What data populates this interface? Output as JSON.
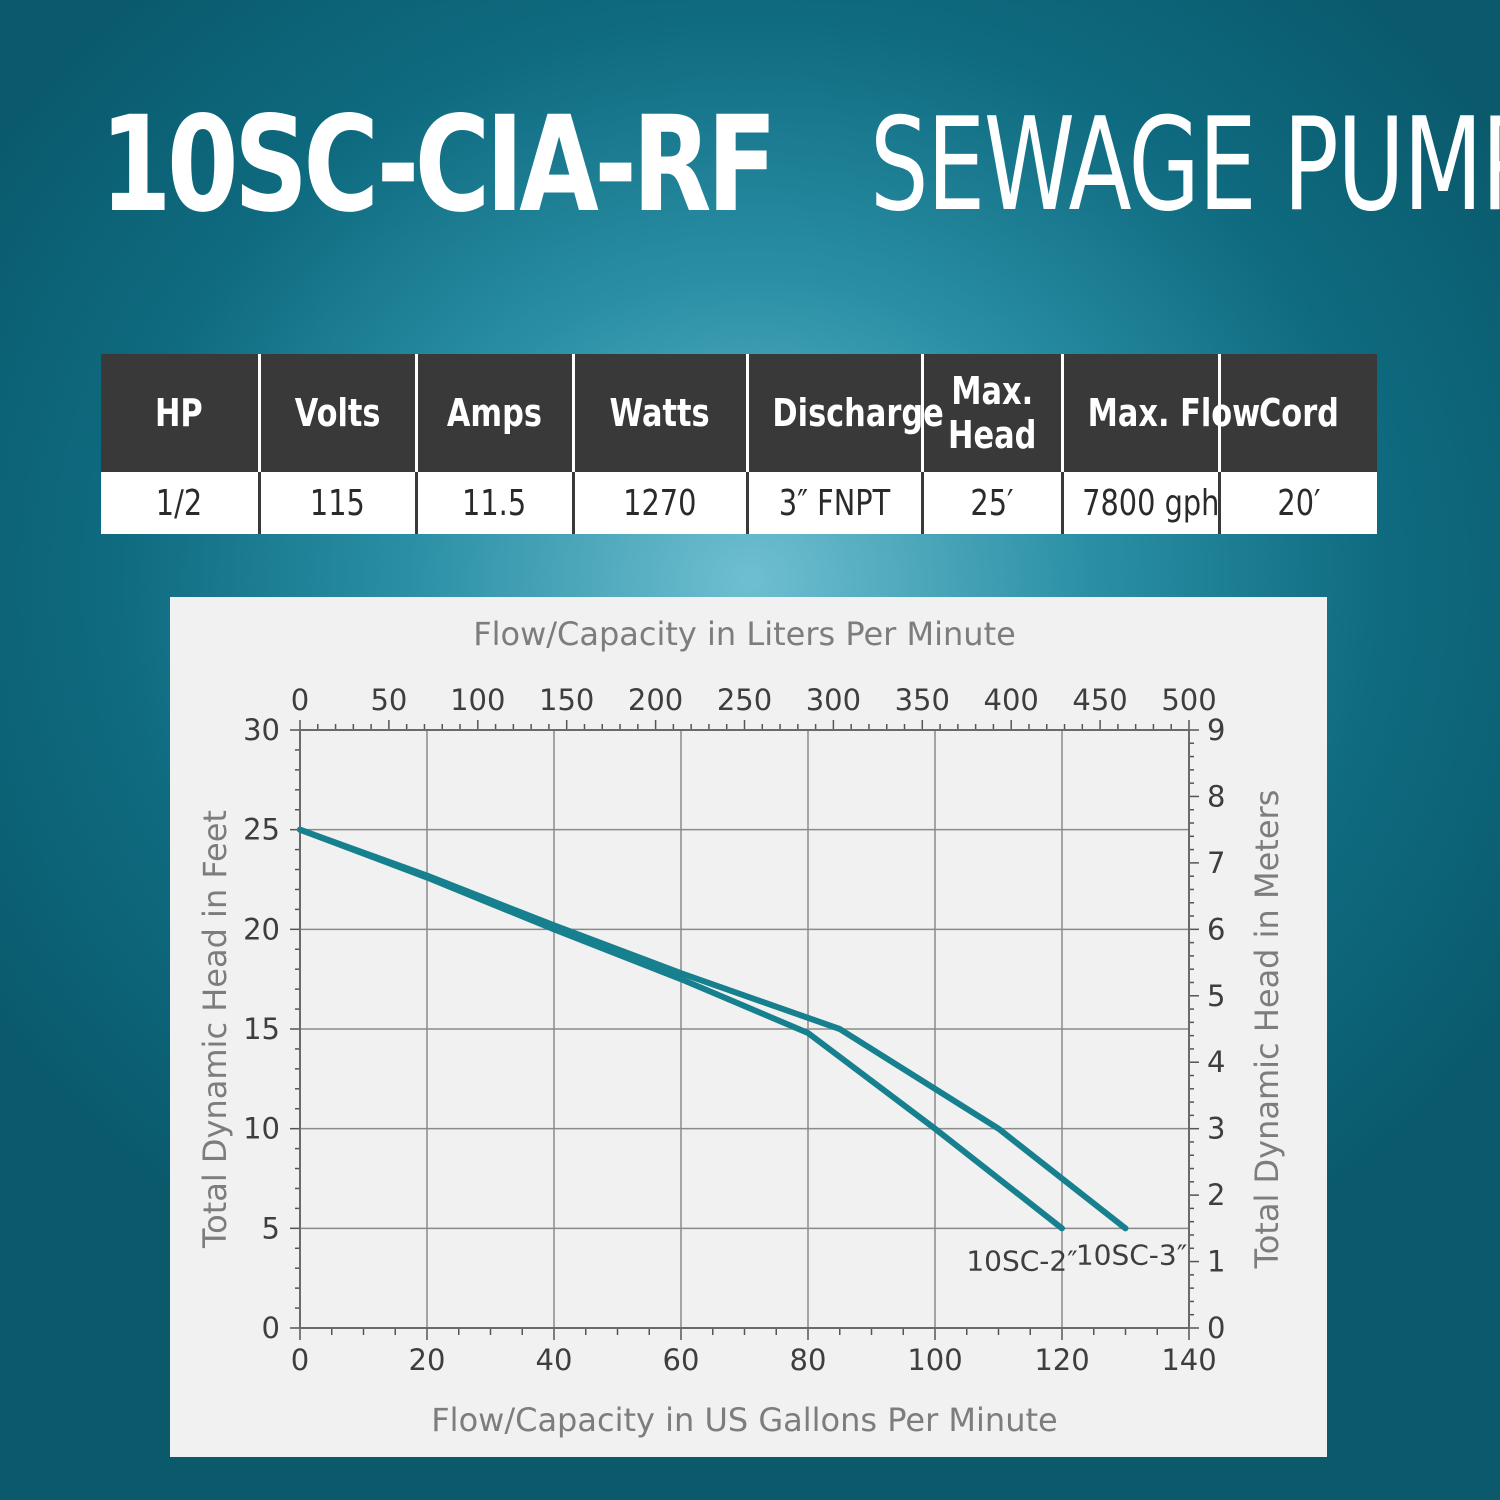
{
  "header": {
    "model": "10SC-CIA-RF",
    "product": "SEWAGE PUMP"
  },
  "specs": {
    "headers": [
      [
        "HP"
      ],
      [
        "Volts"
      ],
      [
        "Amps"
      ],
      [
        "Watts"
      ],
      [
        "Discharge"
      ],
      [
        "Max.",
        "Head"
      ],
      [
        "Max. Flow"
      ],
      [
        "Cord"
      ]
    ],
    "values": [
      "1/2",
      "115",
      "11.5",
      "1270",
      "3″ FNPT",
      "25′",
      "7800 gph",
      "20′"
    ]
  },
  "colors": {
    "curve": "#16808f",
    "header_bg": "#393939",
    "panel_bg": "#f1f1f1",
    "label_gray": "#7d7d7d"
  },
  "chart_data": {
    "type": "line",
    "title": "",
    "xlabel": "Flow/Capacity in US Gallons Per Minute",
    "x2label": "Flow/Capacity in Liters Per Minute",
    "ylabel": "Total Dynamic Head in Feet",
    "y2label": "Total Dynamic Head in Meters",
    "xlim": [
      0,
      140
    ],
    "ylim": [
      0,
      30
    ],
    "x2lim": [
      0,
      500
    ],
    "y2lim": [
      0,
      9
    ],
    "xticks": [
      0,
      20,
      40,
      60,
      80,
      100,
      120,
      140
    ],
    "yticks": [
      0,
      5,
      10,
      15,
      20,
      25,
      30
    ],
    "x2ticks": [
      0,
      50,
      100,
      150,
      200,
      250,
      300,
      350,
      400,
      450,
      500
    ],
    "y2ticks": [
      0,
      1,
      2,
      3,
      4,
      5,
      6,
      7,
      8,
      9
    ],
    "grid": true,
    "series": [
      {
        "name": "10SC-2″",
        "x": [
          0,
          20,
          40,
          60,
          80,
          100,
          120
        ],
        "y": [
          25,
          22.6,
          20,
          17.5,
          14.8,
          10,
          5
        ]
      },
      {
        "name": "10SC-3″",
        "x": [
          0,
          20,
          40,
          60,
          85,
          110,
          130
        ],
        "y": [
          25,
          22.7,
          20.2,
          17.8,
          15,
          10,
          5
        ]
      }
    ]
  }
}
